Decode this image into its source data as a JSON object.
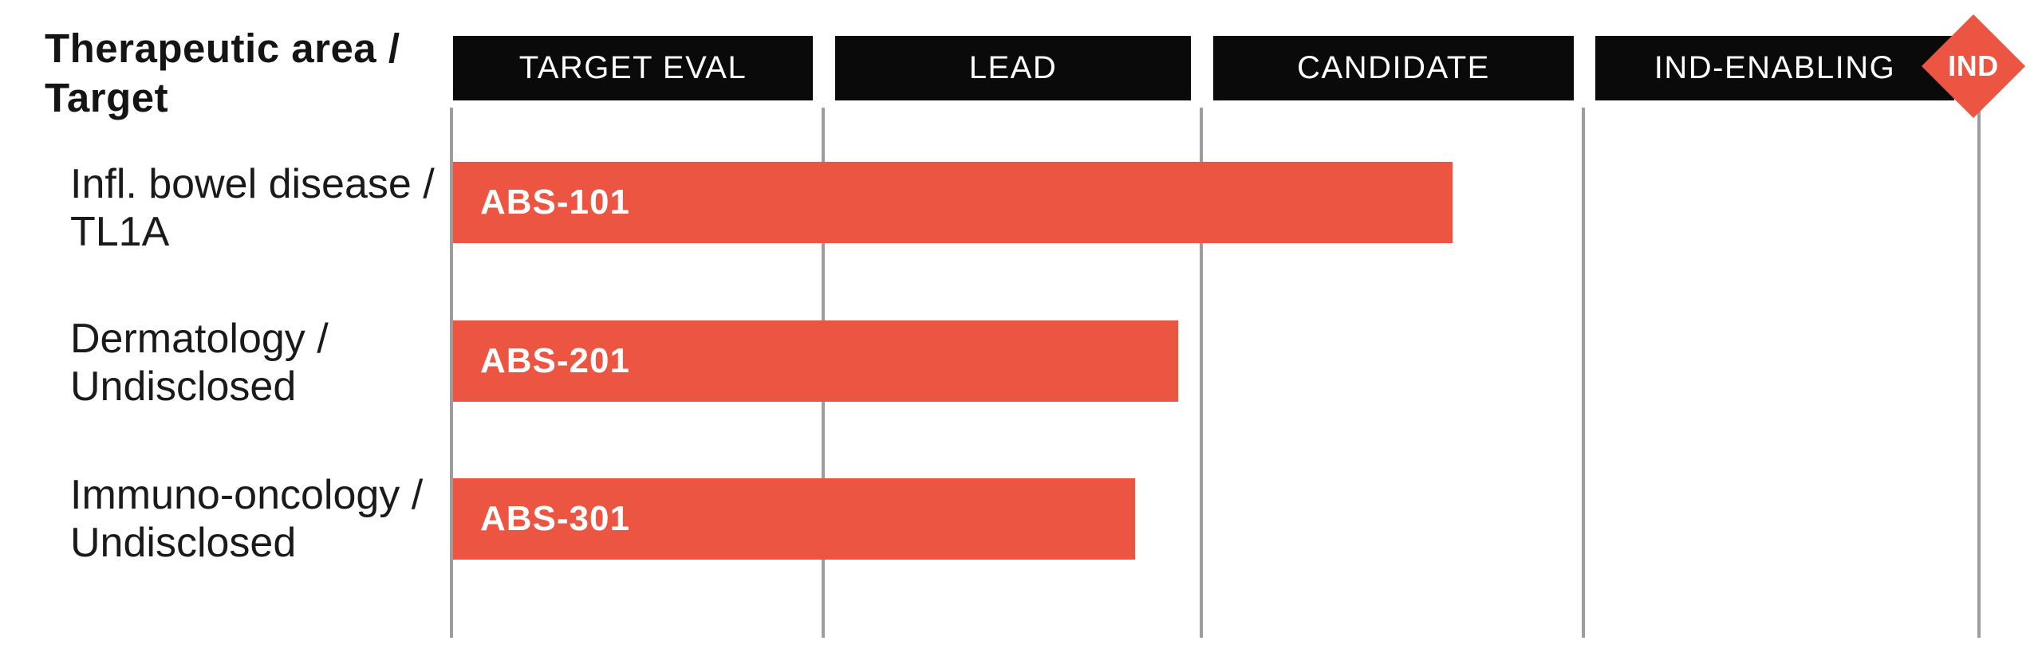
{
  "header": {
    "title_line1": "Therapeutic area /",
    "title_line2": "Target"
  },
  "pipeline": {
    "stages": [
      "TARGET EVAL",
      "LEAD",
      "CANDIDATE",
      "IND-ENABLING"
    ],
    "end_marker_label": "IND"
  },
  "rows": [
    {
      "area_line1": "Infl. bowel disease /",
      "area_line2": "TL1A",
      "program": "ABS-101"
    },
    {
      "area_line1": "Dermatology /",
      "area_line2": "Undisclosed",
      "program": "ABS-201"
    },
    {
      "area_line1": "Immuno-oncology /",
      "area_line2": "Undisclosed",
      "program": "ABS-301"
    }
  ],
  "colors": {
    "accent": "#EB5541",
    "stage_box_background": "#0A0A0A",
    "grid_line": "#9D9D9D",
    "label_text": "#1A1A1A",
    "bar_text": "#FFFFFF"
  },
  "chart_data": {
    "type": "bar",
    "orientation": "horizontal",
    "title": "Therapeutic area / Target",
    "x_axis_stages": [
      "TARGET EVAL",
      "LEAD",
      "CANDIDATE",
      "IND-ENABLING"
    ],
    "x_axis_end_marker": "IND",
    "grid": "vertical stage dividers",
    "y_categories": [
      "Infl. bowel disease / TL1A",
      "Dermatology / Undisclosed",
      "Immuno-oncology / Undisclosed"
    ],
    "series": [
      {
        "program": "ABS-101",
        "progress_fraction_of_axis": 0.655,
        "progress_stage_units": 2.62,
        "stage_reached": "CANDIDATE (mid)"
      },
      {
        "program": "ABS-201",
        "progress_fraction_of_axis": 0.475,
        "progress_stage_units": 1.9,
        "stage_reached": "LEAD (late)"
      },
      {
        "program": "ABS-301",
        "progress_fraction_of_axis": 0.447,
        "progress_stage_units": 1.79,
        "stage_reached": "LEAD (late)"
      }
    ]
  }
}
